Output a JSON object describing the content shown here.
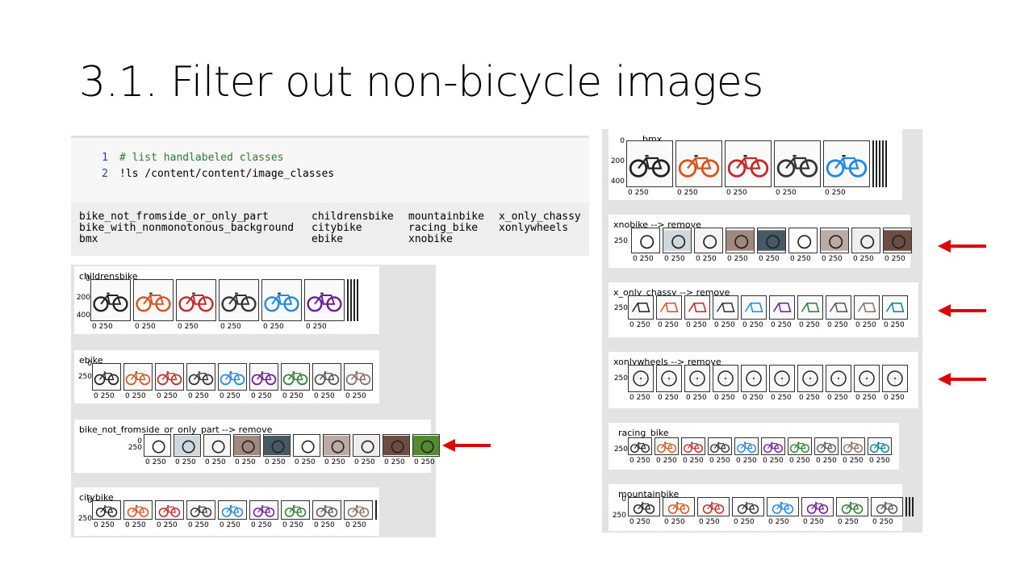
{
  "slide": {
    "title": "3.1. Filter out non-bicycle images"
  },
  "code_cell": {
    "lines": [
      {
        "num": "1",
        "text": "# list handlabeled classes"
      },
      {
        "num": "2",
        "text": "!ls /content/content/image_classes"
      }
    ],
    "output": [
      [
        "bike_not_fromside_or_only_part",
        "childrensbike",
        "mountainbike",
        "x_only_chassy"
      ],
      [
        "bike_with_nonmonotonous_background",
        "citybike",
        "racing_bike",
        "xonlywheels"
      ],
      [
        "bmx",
        "ebike",
        "xnobike",
        ""
      ]
    ]
  },
  "plots": {
    "childrensbike": {
      "title": "childrensbike",
      "yticks": [
        "0",
        "200",
        "400"
      ],
      "xtick": "0    250"
    },
    "ebike": {
      "title": "ebike",
      "yticks": [
        "0",
        "250"
      ],
      "xtick": "0   250"
    },
    "bike_not_fromside": {
      "title": "bike_not_fromside_or_only_part --> remove",
      "yticks": [
        "0",
        "250"
      ],
      "xtick": "0   250"
    },
    "citybike": {
      "title": "citybike",
      "yticks": [
        "0",
        "250"
      ],
      "xtick": "0   250"
    },
    "bmx": {
      "title": "bmx",
      "yticks": [
        "0",
        "200",
        "400"
      ],
      "xtick": "0    250"
    },
    "xnobike": {
      "title": "xnobike --> remove",
      "yticks": [
        "250"
      ],
      "xtick": "0   250"
    },
    "x_only_chassy": {
      "title": "x_only_chassy --> remove",
      "yticks": [
        "250"
      ],
      "xtick": "0   250"
    },
    "xonlywheels": {
      "title": "xonlywheels --> remove",
      "yticks": [
        "250"
      ],
      "xtick": "0   250"
    },
    "racing_bike": {
      "title": "racing_bike",
      "yticks": [
        "250"
      ],
      "xtick": "0   250"
    },
    "mountainbike": {
      "title": "mountainbike",
      "yticks": [
        "0",
        "250"
      ],
      "xtick": "0   250"
    }
  },
  "colors": {
    "arrow": "#e00000",
    "comment": "#2e7d32",
    "line_number": "#1f3f8f",
    "panel": "#e3e3e3"
  }
}
